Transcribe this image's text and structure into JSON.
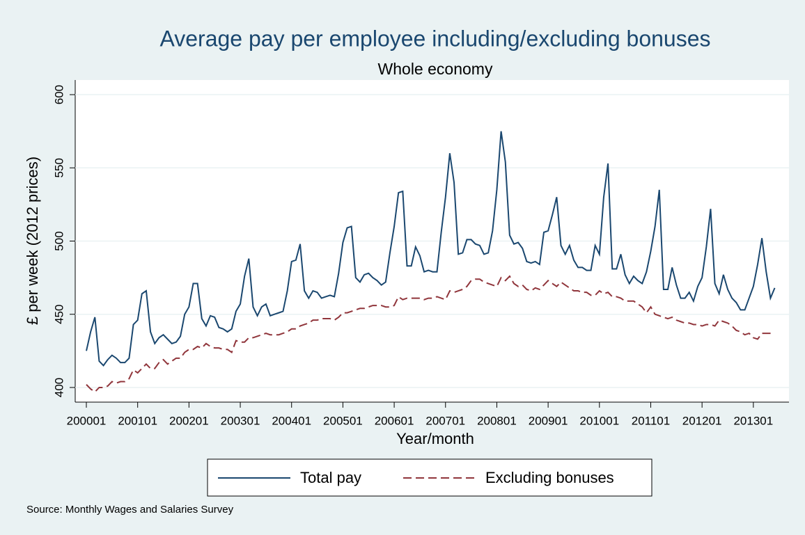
{
  "chart_data": {
    "type": "line",
    "title": "Average pay per employee including/excluding bonuses",
    "subtitle": "Whole economy",
    "y_label": "£ per week (2012 prices)",
    "x_label": "Year/month",
    "source": "Source: Monthly Wages and Salaries Survey",
    "categories": [
      "200001",
      null,
      null,
      null,
      null,
      null,
      null,
      null,
      null,
      null,
      null,
      null,
      "200101",
      null,
      null,
      null,
      null,
      null,
      null,
      null,
      null,
      null,
      null,
      null,
      "200201",
      null,
      null,
      null,
      null,
      null,
      null,
      null,
      null,
      null,
      null,
      null,
      "200301",
      null,
      null,
      null,
      null,
      null,
      null,
      null,
      null,
      null,
      null,
      null,
      "200401",
      null,
      null,
      null,
      null,
      null,
      null,
      null,
      null,
      null,
      null,
      null,
      "200501",
      null,
      null,
      null,
      null,
      null,
      null,
      null,
      null,
      null,
      null,
      null,
      "200601",
      null,
      null,
      null,
      null,
      null,
      null,
      null,
      null,
      null,
      null,
      null,
      "200701",
      null,
      null,
      null,
      null,
      null,
      null,
      null,
      null,
      null,
      null,
      null,
      "200801",
      null,
      null,
      null,
      null,
      null,
      null,
      null,
      null,
      null,
      null,
      null,
      "200901",
      null,
      null,
      null,
      null,
      null,
      null,
      null,
      null,
      null,
      null,
      null,
      "201001",
      null,
      null,
      null,
      null,
      null,
      null,
      null,
      null,
      null,
      null,
      null,
      "201101",
      null,
      null,
      null,
      null,
      null,
      null,
      null,
      null,
      null,
      null,
      null,
      "201201",
      null,
      null,
      null,
      null,
      null,
      null,
      null,
      null,
      null,
      null,
      null,
      "201301",
      null,
      null,
      null,
      null,
      null
    ],
    "series": [
      {
        "name": "Total pay",
        "color": "#1a476f",
        "line_style": "solid",
        "values": [
          425,
          438,
          448,
          418,
          415,
          419,
          422,
          420,
          417,
          417,
          420,
          443,
          446,
          464,
          466,
          438,
          430,
          434,
          436,
          433,
          430,
          431,
          435,
          450,
          455,
          471,
          471,
          447,
          442,
          449,
          448,
          441,
          440,
          438,
          440,
          452,
          457,
          476,
          488,
          455,
          449,
          455,
          457,
          449,
          450,
          451,
          452,
          466,
          486,
          487,
          498,
          466,
          461,
          466,
          465,
          461,
          462,
          463,
          462,
          478,
          499,
          509,
          510,
          475,
          472,
          477,
          478,
          475,
          473,
          470,
          472,
          492,
          510,
          533,
          534,
          483,
          483,
          496,
          490,
          479,
          480,
          479,
          479,
          506,
          530,
          560,
          540,
          491,
          492,
          501,
          501,
          498,
          497,
          491,
          492,
          507,
          535,
          575,
          554,
          504,
          498,
          499,
          495,
          486,
          485,
          486,
          484,
          506,
          507,
          518,
          530,
          497,
          491,
          497,
          487,
          482,
          482,
          480,
          480,
          497,
          491,
          530,
          553,
          481,
          481,
          491,
          477,
          471,
          476,
          473,
          471,
          479,
          493,
          510,
          535,
          467,
          467,
          482,
          470,
          461,
          461,
          465,
          459,
          469,
          475,
          496,
          522,
          471,
          464,
          477,
          467,
          461,
          458,
          453,
          453,
          461,
          469,
          484,
          502,
          479,
          461,
          468
        ]
      },
      {
        "name": "Excluding bonuses",
        "color": "#90353b",
        "line_style": "dashed",
        "values": [
          402,
          399,
          397,
          400,
          400,
          401,
          404,
          403,
          404,
          404,
          406,
          412,
          410,
          413,
          416,
          413,
          413,
          417,
          419,
          416,
          418,
          420,
          420,
          424,
          426,
          426,
          428,
          427,
          430,
          428,
          427,
          427,
          426,
          426,
          424,
          432,
          431,
          431,
          434,
          434,
          435,
          436,
          437,
          436,
          436,
          436,
          437,
          438,
          440,
          440,
          442,
          443,
          444,
          446,
          446,
          447,
          447,
          447,
          446,
          448,
          451,
          451,
          452,
          453,
          454,
          454,
          455,
          456,
          456,
          456,
          455,
          455,
          456,
          462,
          460,
          461,
          461,
          461,
          461,
          460,
          461,
          461,
          462,
          461,
          460,
          466,
          465,
          466,
          467,
          469,
          473,
          474,
          474,
          472,
          471,
          470,
          469,
          475,
          473,
          476,
          471,
          469,
          470,
          467,
          466,
          468,
          467,
          470,
          473,
          471,
          469,
          472,
          470,
          468,
          466,
          466,
          465,
          465,
          463,
          463,
          466,
          464,
          465,
          462,
          462,
          461,
          459,
          459,
          459,
          457,
          455,
          451,
          455,
          450,
          449,
          448,
          447,
          448,
          446,
          445,
          444,
          444,
          443,
          443,
          442,
          443,
          443,
          442,
          446,
          445,
          444,
          442,
          439,
          438,
          436,
          437,
          434,
          433,
          437,
          437,
          437,
          437
        ]
      }
    ],
    "ylim": [
      390,
      610
    ],
    "yticks": [
      400,
      450,
      500,
      550,
      600
    ],
    "grid": true,
    "legend": "bottom"
  }
}
